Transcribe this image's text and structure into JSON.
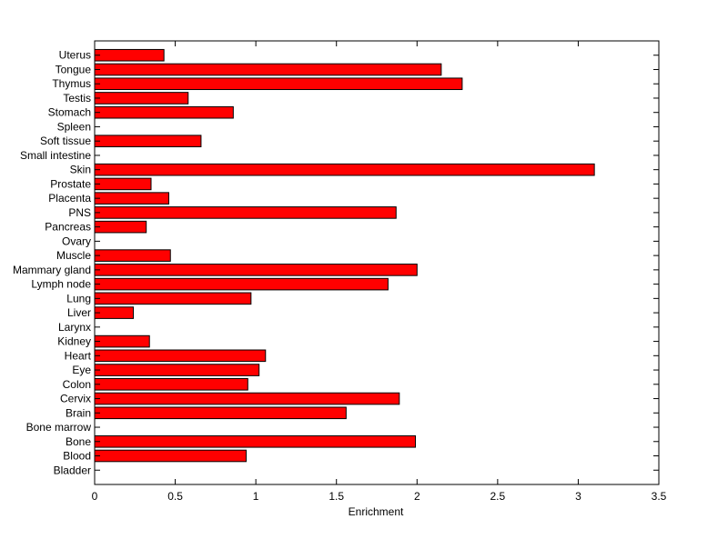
{
  "chart_data": {
    "type": "bar",
    "orientation": "horizontal",
    "title": "",
    "xlabel": "Enrichment",
    "ylabel": "",
    "xlim": [
      0,
      3.5
    ],
    "xticks": [
      "0",
      "0.5",
      "1",
      "1.5",
      "2",
      "2.5",
      "3",
      "3.5"
    ],
    "grid": false,
    "categories": [
      "Bladder",
      "Blood",
      "Bone",
      "Bone marrow",
      "Brain",
      "Cervix",
      "Colon",
      "Eye",
      "Heart",
      "Kidney",
      "Larynx",
      "Liver",
      "Lung",
      "Lymph node",
      "Mammary gland",
      "Muscle",
      "Ovary",
      "Pancreas",
      "PNS",
      "Placenta",
      "Prostate",
      "Skin",
      "Small intestine",
      "Soft tissue",
      "Spleen",
      "Stomach",
      "Testis",
      "Thymus",
      "Tongue",
      "Uterus"
    ],
    "values": [
      0,
      0.94,
      1.99,
      0,
      1.56,
      1.89,
      0.95,
      1.02,
      1.06,
      0.34,
      0,
      0.24,
      0.97,
      1.82,
      2.0,
      0.47,
      0,
      0.32,
      1.87,
      0.46,
      0.35,
      3.1,
      0,
      0.66,
      0,
      0.86,
      0.58,
      2.28,
      2.15,
      0.43
    ],
    "bar_color": "#ff0000",
    "edge_color": "#000000"
  }
}
